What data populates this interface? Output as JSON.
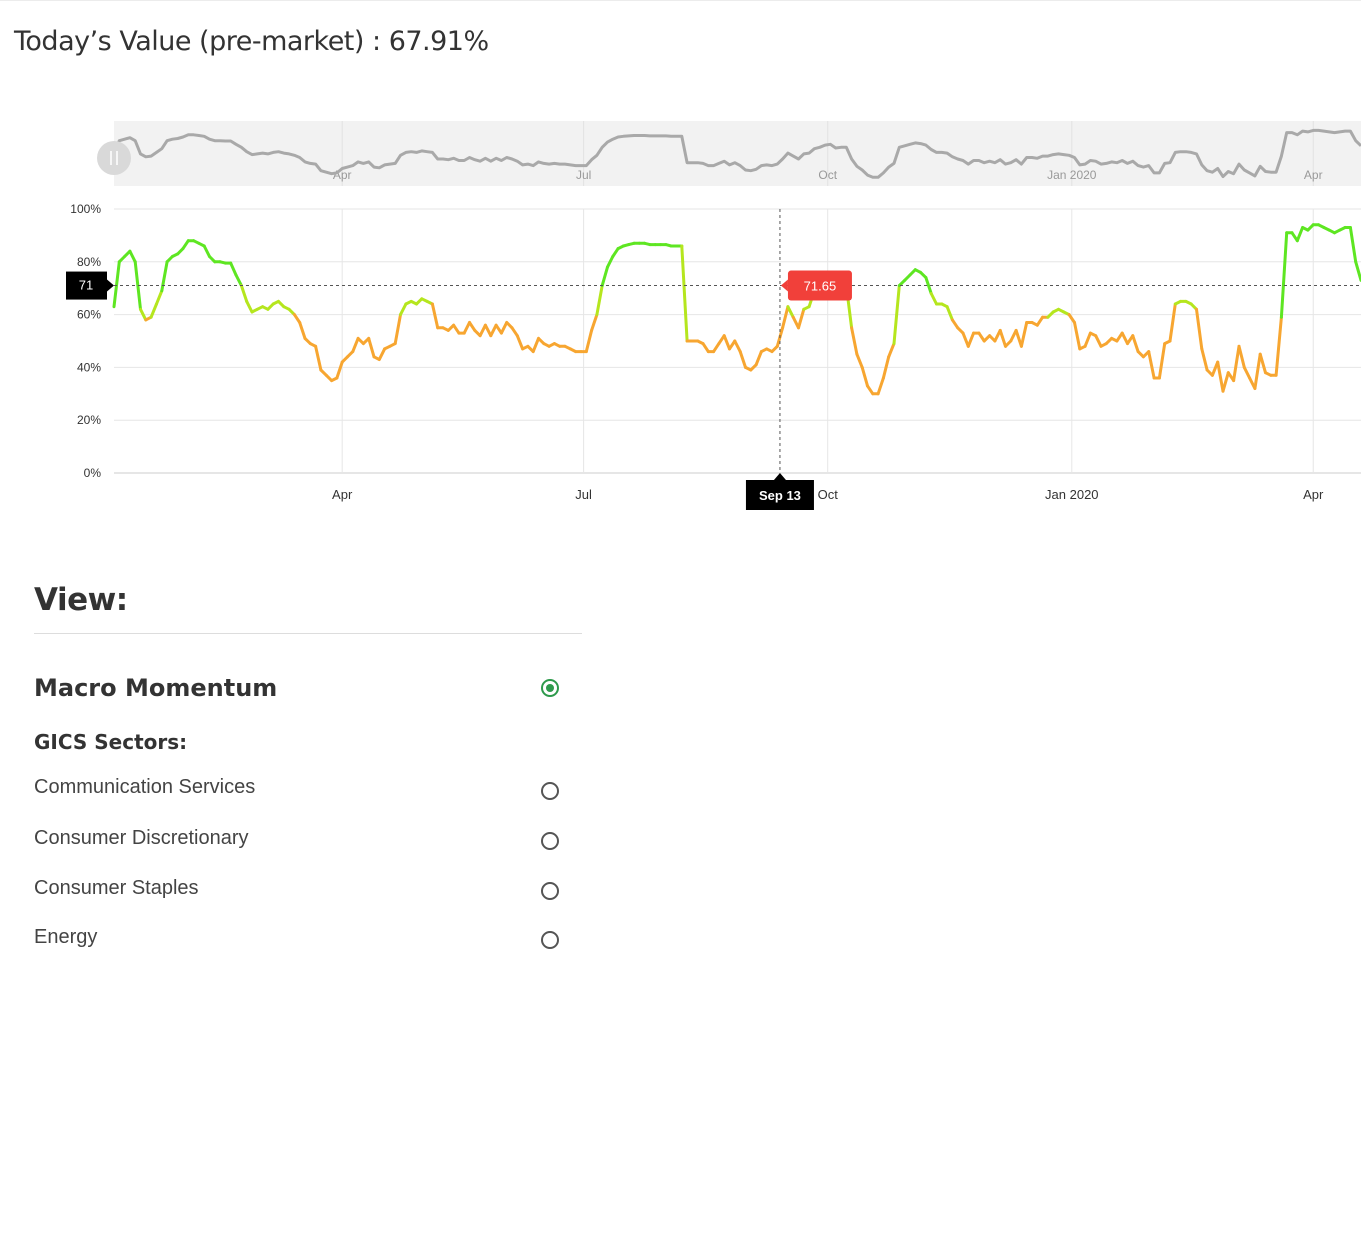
{
  "header": {
    "title": "Today’s Value (pre-market) : 67.91%"
  },
  "view": {
    "title": "View:",
    "selected_option": "Macro Momentum",
    "group_label": "GICS Sectors:",
    "options": [
      "Communication Services",
      "Consumer Discretionary",
      "Consumer Staples",
      "Energy"
    ]
  },
  "colors": {
    "high": "#5ee622",
    "mid": "#b5e61e",
    "low": "#f7a631",
    "navigator": "#a9a9a9",
    "tooltip": "#f1403a",
    "selected": "#2e9a4c"
  },
  "chart_data": {
    "type": "line",
    "series": [
      {
        "values": [
          63.0,
          80.0,
          82.0,
          84.0,
          80.0,
          62.0,
          58.0,
          59.0,
          64.0,
          69.0,
          80.0,
          82.0,
          83.0,
          85.0,
          88.0,
          88.0,
          87.0,
          86.0,
          82.0,
          80.0,
          80.0,
          79.5,
          79.5,
          75.0,
          71.0,
          65.0,
          61.0,
          62.0,
          63.0,
          62.0,
          64.0,
          65.0,
          63.0,
          62.0,
          60.0,
          57.0,
          51.0,
          49.0,
          48.0,
          39.0,
          37.0,
          35.0,
          36.0,
          42.0,
          44.0,
          46.0,
          51.0,
          49.0,
          51.0,
          44.0,
          43.0,
          47.0,
          48.0,
          49.0,
          60.0,
          64.0,
          65.0,
          64.0,
          66.0,
          65.0,
          64.0,
          55.0,
          55.0,
          54.0,
          56.0,
          53.0,
          53.0,
          57.0,
          54.0,
          52.0,
          56.0,
          52.0,
          56.0,
          53.0,
          57.0,
          55.0,
          52.0,
          47.0,
          48.0,
          46.0,
          51.0,
          49.0,
          48.0,
          49.0,
          48.0,
          48.0,
          47.0,
          46.0,
          46.0,
          46.0,
          54.0,
          60.0,
          71.0,
          78.0,
          82.0,
          85.0,
          86.0,
          86.5,
          87.0,
          87.0,
          87.0,
          86.5,
          86.5,
          86.5,
          86.5,
          86.0,
          86.0,
          86.0,
          50.0,
          50.0,
          50.0,
          49.0,
          46.0,
          46.0,
          49.0,
          52.0,
          47.0,
          50.0,
          46.0,
          40.0,
          39.0,
          41.0,
          46.0,
          47.0,
          46.0,
          48.0,
          55.0,
          63.0,
          59.0,
          55.0,
          62.0,
          63.0,
          69.0,
          71.0,
          74.0,
          75.0,
          70.0,
          71.0,
          71.0,
          55.0,
          45.0,
          40.0,
          33.0,
          30.0,
          30.0,
          36.0,
          44.0,
          49.0,
          71.0,
          73.0,
          75.0,
          77.0,
          76.0,
          74.0,
          68.0,
          64.0,
          64.0,
          63.0,
          58.0,
          55.0,
          53.0,
          48.0,
          53.0,
          53.0,
          50.0,
          52.0,
          50.0,
          54.0,
          48.0,
          50.0,
          54.0,
          48.0,
          57.0,
          57.0,
          56.0,
          59.0,
          59.0,
          61.0,
          62.0,
          61.0,
          60.0,
          57.0,
          47.0,
          48.0,
          53.0,
          52.0,
          48.0,
          49.0,
          51.0,
          50.0,
          53.0,
          49.0,
          52.0,
          46.0,
          44.0,
          46.0,
          36.0,
          36.0,
          49.0,
          50.0,
          64.0,
          65.0,
          65.0,
          64.0,
          62.0,
          47.0,
          39.0,
          37.0,
          42.0,
          31.0,
          38.0,
          35.0,
          48.0,
          40.0,
          36.0,
          32.0,
          45.0,
          38.0,
          37.0,
          37.0,
          59.0,
          91.0,
          91.0,
          88.0,
          93.0,
          92.0,
          94.0,
          94.0,
          93.0,
          92.0,
          91.0,
          92.0,
          93.0,
          93.0,
          80.0,
          73.0
        ]
      }
    ],
    "x_range": [
      "2019-01-05",
      "2020-04-19"
    ],
    "x_ticks": [
      "Apr",
      "Jul",
      "Oct",
      "Jan 2020",
      "Apr"
    ],
    "x_tick_dates": [
      "2019-04-01",
      "2019-07-01",
      "2019-10-01",
      "2020-01-01",
      "2020-04-01"
    ],
    "y_ticks": [
      "0%",
      "20%",
      "40%",
      "60%",
      "80%",
      "100%"
    ],
    "ylim": [
      0,
      100
    ],
    "crosshair": {
      "x_label": "Sep 13",
      "x_date": "2019-09-13",
      "y_label": "71",
      "y_value": 71,
      "tooltip": "71.65"
    },
    "grid": true,
    "legend": "none",
    "navigator": true
  }
}
